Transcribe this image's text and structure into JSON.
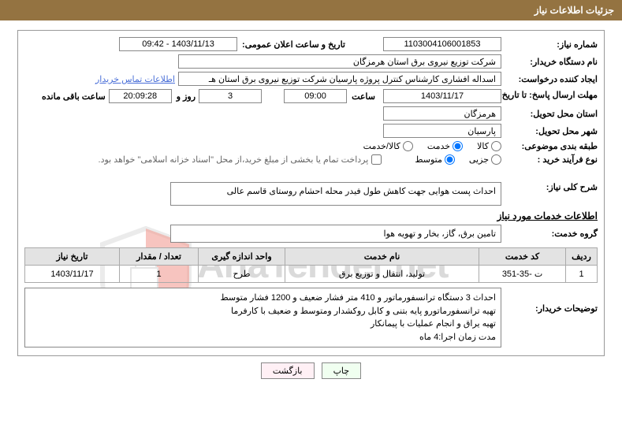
{
  "header": {
    "title": "جزئیات اطلاعات نیاز"
  },
  "fields": {
    "need_number_label": "شماره نیاز:",
    "need_number": "1103004106001853",
    "announce_label": "تاریخ و ساعت اعلان عمومی:",
    "announce_value": "1403/11/13 - 09:42",
    "buyer_org_label": "نام دستگاه خریدار:",
    "buyer_org": "شرکت توزیع نیروی برق استان هرمزگان",
    "requester_label": "ایجاد کننده درخواست:",
    "requester": "اسداله افشاری کارشناس کنترل پروژه پارسیان شرکت توزیع نیروی برق استان هـ",
    "contact_link": "اطلاعات تماس خریدار",
    "deadline_label": "مهلت ارسال پاسخ: تا تاریخ:",
    "deadline_date": "1403/11/17",
    "time_label": "ساعت",
    "deadline_time": "09:00",
    "days_value": "3",
    "days_and": "روز و",
    "hms_value": "20:09:28",
    "remaining": "ساعت باقی مانده",
    "province_label": "استان محل تحویل:",
    "province": "هرمزگان",
    "city_label": "شهر محل تحویل:",
    "city": "پارسیان",
    "category_label": "طبقه بندی موضوعی:",
    "cat_goods": "کالا",
    "cat_service": "خدمت",
    "cat_both": "کالا/خدمت",
    "process_label": "نوع فرآیند خرید :",
    "proc_small": "جزیی",
    "proc_medium": "متوسط",
    "treasury_note": "پرداخت تمام یا بخشی از مبلغ خرید،از محل \"اسناد خزانه اسلامی\" خواهد بود."
  },
  "need_desc": {
    "label": "شرح کلی نیاز:",
    "text": "احداث پست هوایی جهت کاهش طول فیدر محله احشام روستای قاسم عالی"
  },
  "services_section": "اطلاعات خدمات مورد نیاز",
  "service_group": {
    "label": "گروه خدمت:",
    "value": "تامین برق، گاز، بخار و تهویه هوا"
  },
  "table": {
    "columns": [
      "ردیف",
      "کد خدمت",
      "نام خدمت",
      "واحد اندازه گیری",
      "تعداد / مقدار",
      "تاریخ نیاز"
    ],
    "col_widths": [
      "40px",
      "110px",
      "auto",
      "110px",
      "100px",
      "120px"
    ],
    "rows": [
      [
        "1",
        "ت -35-351",
        "تولید، انتقال و توزیع برق",
        "طرح",
        "1",
        "1403/11/17"
      ]
    ]
  },
  "buyer_notes": {
    "label": "توضیحات خریدار:",
    "lines": [
      "احداث 3 دستگاه ترانسفورماتور و 410 متر فشار ضعیف و 1200 فشار متوسط",
      "تهیه ترانسفورماتورو پایه بتنی و کابل روکشدار ومتوسط و ضعیف با کارفرما",
      "تهیه یراق و انجام عملیات با پیمانکار",
      "مدت زمان اجرا:4 ماه"
    ]
  },
  "buttons": {
    "print": "چاپ",
    "back": "بازگشت"
  },
  "watermark": {
    "text": "AriaTender.net"
  }
}
